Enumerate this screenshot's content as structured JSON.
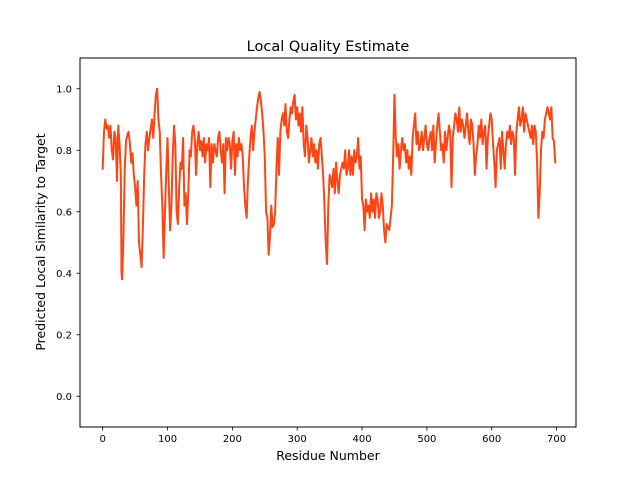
{
  "chart_data": {
    "type": "line",
    "title": "Local Quality Estimate",
    "xlabel": "Residue Number",
    "ylabel": "Predicted Local Similarity to Target",
    "xlim": [
      -35,
      730
    ],
    "ylim": [
      -0.1,
      1.1
    ],
    "xticks": [
      0,
      100,
      200,
      300,
      400,
      500,
      600,
      700
    ],
    "yticks": [
      0.0,
      0.2,
      0.4,
      0.6,
      0.8,
      1.0
    ],
    "ytick_labels": [
      "0.0",
      "0.2",
      "0.4",
      "0.6",
      "0.8",
      "1.0"
    ],
    "grid": false,
    "series": [
      {
        "color": "#ff4514",
        "x": [
          0,
          2,
          4,
          6,
          8,
          10,
          12,
          14,
          16,
          18,
          20,
          22,
          24,
          26,
          28,
          29,
          30,
          32,
          34,
          36,
          38,
          40,
          42,
          44,
          46,
          48,
          50,
          52,
          54,
          56,
          58,
          60,
          62,
          64,
          66,
          68,
          70,
          72,
          74,
          76,
          78,
          80,
          82,
          84,
          86,
          88,
          90,
          92,
          94,
          96,
          98,
          100,
          102,
          104,
          106,
          108,
          110,
          112,
          114,
          116,
          118,
          120,
          122,
          124,
          126,
          128,
          130,
          132,
          134,
          136,
          138,
          140,
          142,
          144,
          146,
          148,
          150,
          152,
          154,
          156,
          158,
          160,
          162,
          164,
          166,
          168,
          170,
          172,
          174,
          176,
          178,
          180,
          182,
          184,
          186,
          188,
          190,
          192,
          194,
          196,
          198,
          200,
          202,
          204,
          206,
          208,
          210,
          212,
          214,
          216,
          218,
          220,
          222,
          224,
          226,
          228,
          230,
          232,
          234,
          236,
          238,
          240,
          242,
          244,
          246,
          248,
          250,
          252,
          254,
          256,
          258,
          260,
          262,
          264,
          266,
          268,
          270,
          272,
          274,
          276,
          278,
          280,
          282,
          284,
          286,
          288,
          290,
          292,
          294,
          296,
          298,
          300,
          302,
          304,
          306,
          308,
          310,
          312,
          314,
          316,
          318,
          320,
          322,
          324,
          326,
          328,
          330,
          332,
          334,
          336,
          338,
          340,
          342,
          344,
          346,
          348,
          350,
          352,
          354,
          356,
          358,
          360,
          362,
          364,
          366,
          368,
          370,
          372,
          374,
          376,
          378,
          380,
          382,
          384,
          386,
          388,
          390,
          392,
          394,
          396,
          398,
          400,
          402,
          404,
          406,
          408,
          410,
          412,
          414,
          416,
          418,
          420,
          422,
          424,
          426,
          428,
          430,
          432,
          434,
          436,
          438,
          440,
          442,
          444,
          446,
          448,
          450,
          452,
          454,
          456,
          458,
          460,
          462,
          464,
          466,
          468,
          470,
          472,
          474,
          476,
          478,
          480,
          482,
          484,
          486,
          488,
          490,
          492,
          494,
          496,
          498,
          500,
          502,
          504,
          506,
          508,
          510,
          512,
          514,
          516,
          518,
          520,
          522,
          524,
          526,
          528,
          530,
          532,
          534,
          536,
          538,
          540,
          542,
          544,
          546,
          548,
          550,
          552,
          554,
          556,
          558,
          560,
          562,
          564,
          566,
          568,
          570,
          572,
          574,
          576,
          578,
          580,
          582,
          584,
          586,
          588,
          590,
          592,
          594,
          596,
          598,
          600,
          602,
          604,
          606,
          608,
          610,
          612,
          614,
          616,
          618,
          620,
          622,
          624,
          626,
          628,
          630,
          632,
          634,
          636,
          638,
          640,
          642,
          644,
          646,
          648,
          650,
          652,
          654,
          656,
          658,
          660,
          662,
          664,
          666,
          668,
          670,
          672,
          674,
          676,
          678,
          680,
          682,
          684,
          686,
          688,
          690,
          692,
          694,
          696,
          698
        ],
        "y": [
          0.74,
          0.86,
          0.9,
          0.87,
          0.88,
          0.84,
          0.88,
          0.8,
          0.77,
          0.86,
          0.84,
          0.7,
          0.88,
          0.82,
          0.72,
          0.4,
          0.38,
          0.52,
          0.74,
          0.83,
          0.85,
          0.86,
          0.82,
          0.76,
          0.79,
          0.72,
          0.68,
          0.62,
          0.7,
          0.5,
          0.46,
          0.42,
          0.55,
          0.72,
          0.82,
          0.86,
          0.8,
          0.84,
          0.87,
          0.9,
          0.84,
          0.92,
          0.98,
          1.0,
          0.9,
          0.86,
          0.72,
          0.62,
          0.45,
          0.6,
          0.73,
          0.84,
          0.68,
          0.54,
          0.62,
          0.78,
          0.88,
          0.82,
          0.6,
          0.56,
          0.68,
          0.76,
          0.74,
          0.84,
          0.62,
          0.66,
          0.56,
          0.66,
          0.8,
          0.78,
          0.86,
          0.88,
          0.84,
          0.72,
          0.82,
          0.86,
          0.8,
          0.83,
          0.78,
          0.84,
          0.76,
          0.82,
          0.8,
          0.84,
          0.68,
          0.82,
          0.76,
          0.82,
          0.8,
          0.78,
          0.84,
          0.86,
          0.8,
          0.76,
          0.82,
          0.66,
          0.84,
          0.8,
          0.84,
          0.82,
          0.74,
          0.83,
          0.86,
          0.72,
          0.82,
          0.78,
          0.84,
          0.8,
          0.82,
          0.78,
          0.68,
          0.62,
          0.58,
          0.7,
          0.78,
          0.84,
          0.88,
          0.8,
          0.86,
          0.9,
          0.94,
          0.97,
          0.99,
          0.96,
          0.92,
          0.86,
          0.78,
          0.6,
          0.58,
          0.46,
          0.52,
          0.62,
          0.55,
          0.56,
          0.6,
          0.74,
          0.84,
          0.72,
          0.86,
          0.9,
          0.92,
          0.88,
          0.95,
          0.86,
          0.84,
          0.9,
          0.94,
          0.92,
          0.96,
          0.98,
          0.9,
          0.94,
          0.88,
          0.92,
          0.86,
          0.94,
          0.82,
          0.78,
          0.88,
          0.84,
          0.76,
          0.8,
          0.84,
          0.78,
          0.82,
          0.76,
          0.8,
          0.74,
          0.82,
          0.84,
          0.78,
          0.72,
          0.62,
          0.5,
          0.43,
          0.62,
          0.72,
          0.7,
          0.68,
          0.74,
          0.66,
          0.76,
          0.7,
          0.66,
          0.72,
          0.74,
          0.76,
          0.74,
          0.8,
          0.72,
          0.74,
          0.8,
          0.72,
          0.78,
          0.72,
          0.8,
          0.76,
          0.78,
          0.84,
          0.74,
          0.78,
          0.64,
          0.62,
          0.54,
          0.64,
          0.6,
          0.62,
          0.58,
          0.66,
          0.6,
          0.64,
          0.58,
          0.66,
          0.64,
          0.58,
          0.6,
          0.66,
          0.62,
          0.54,
          0.5,
          0.56,
          0.55,
          0.54,
          0.58,
          0.62,
          0.78,
          0.98,
          0.84,
          0.78,
          0.82,
          0.74,
          0.8,
          0.84,
          0.8,
          0.82,
          0.76,
          0.8,
          0.74,
          0.78,
          0.72,
          0.84,
          0.88,
          0.92,
          0.82,
          0.86,
          0.8,
          0.82,
          0.86,
          0.8,
          0.84,
          0.88,
          0.82,
          0.8,
          0.84,
          0.86,
          0.8,
          0.88,
          0.76,
          0.82,
          0.88,
          0.92,
          0.86,
          0.8,
          0.82,
          0.76,
          0.86,
          0.8,
          0.84,
          0.88,
          0.86,
          0.68,
          0.84,
          0.88,
          0.92,
          0.9,
          0.86,
          0.94,
          0.86,
          0.9,
          0.88,
          0.84,
          0.88,
          0.92,
          0.86,
          0.82,
          0.9,
          0.88,
          0.82,
          0.72,
          0.78,
          0.82,
          0.88,
          0.84,
          0.9,
          0.82,
          0.86,
          0.88,
          0.74,
          0.84,
          0.88,
          0.92,
          0.9,
          0.82,
          0.76,
          0.68,
          0.8,
          0.82,
          0.84,
          0.74,
          0.86,
          0.8,
          0.74,
          0.82,
          0.86,
          0.84,
          0.88,
          0.82,
          0.86,
          0.84,
          0.72,
          0.86,
          0.9,
          0.94,
          0.88,
          0.9,
          0.94,
          0.86,
          0.92,
          0.9,
          0.88,
          0.86,
          0.84,
          0.88,
          0.82,
          0.88,
          0.86,
          0.76,
          0.58,
          0.66,
          0.8,
          0.86,
          0.84,
          0.9,
          0.92,
          0.94,
          0.92,
          0.9,
          0.94,
          0.84,
          0.83,
          0.76
        ]
      }
    ]
  }
}
